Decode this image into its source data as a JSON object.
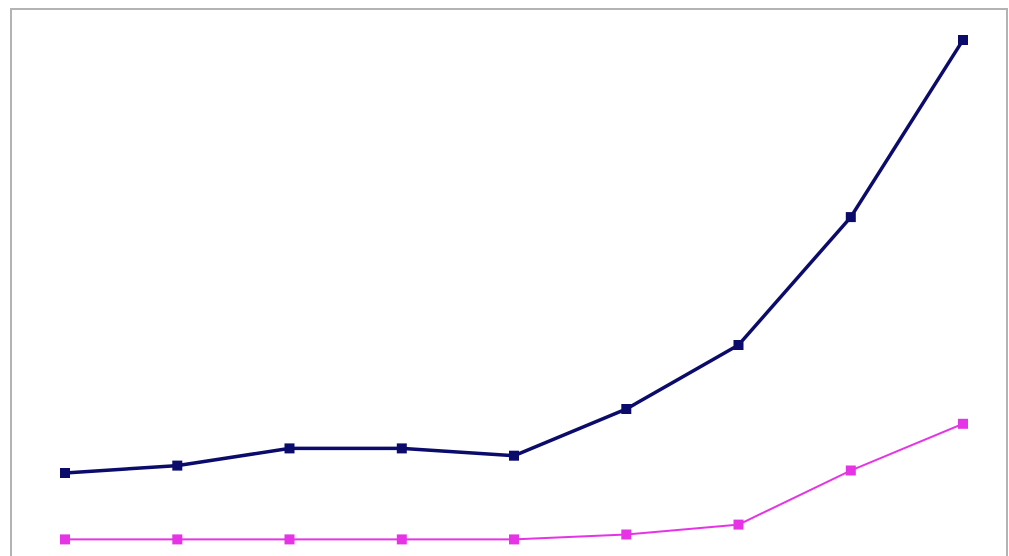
{
  "chart_data": {
    "type": "line",
    "title": "",
    "xlabel": "",
    "ylabel": "",
    "x": [
      1,
      2,
      3,
      4,
      5,
      6,
      7,
      8,
      9
    ],
    "xlim": [
      0.5,
      9.5
    ],
    "ylim": [
      0,
      100
    ],
    "grid": false,
    "legend": "none",
    "series": [
      {
        "values": [
          12,
          13.5,
          17,
          17,
          15.5,
          25,
          38,
          64,
          100
        ],
        "color": "#0b0b6b",
        "marker": "square"
      },
      {
        "values": [
          -1.5,
          -1.5,
          -1.5,
          -1.5,
          -1.5,
          -0.5,
          1.5,
          12.5,
          22
        ],
        "color": "#e633e6",
        "marker": "square"
      }
    ]
  }
}
